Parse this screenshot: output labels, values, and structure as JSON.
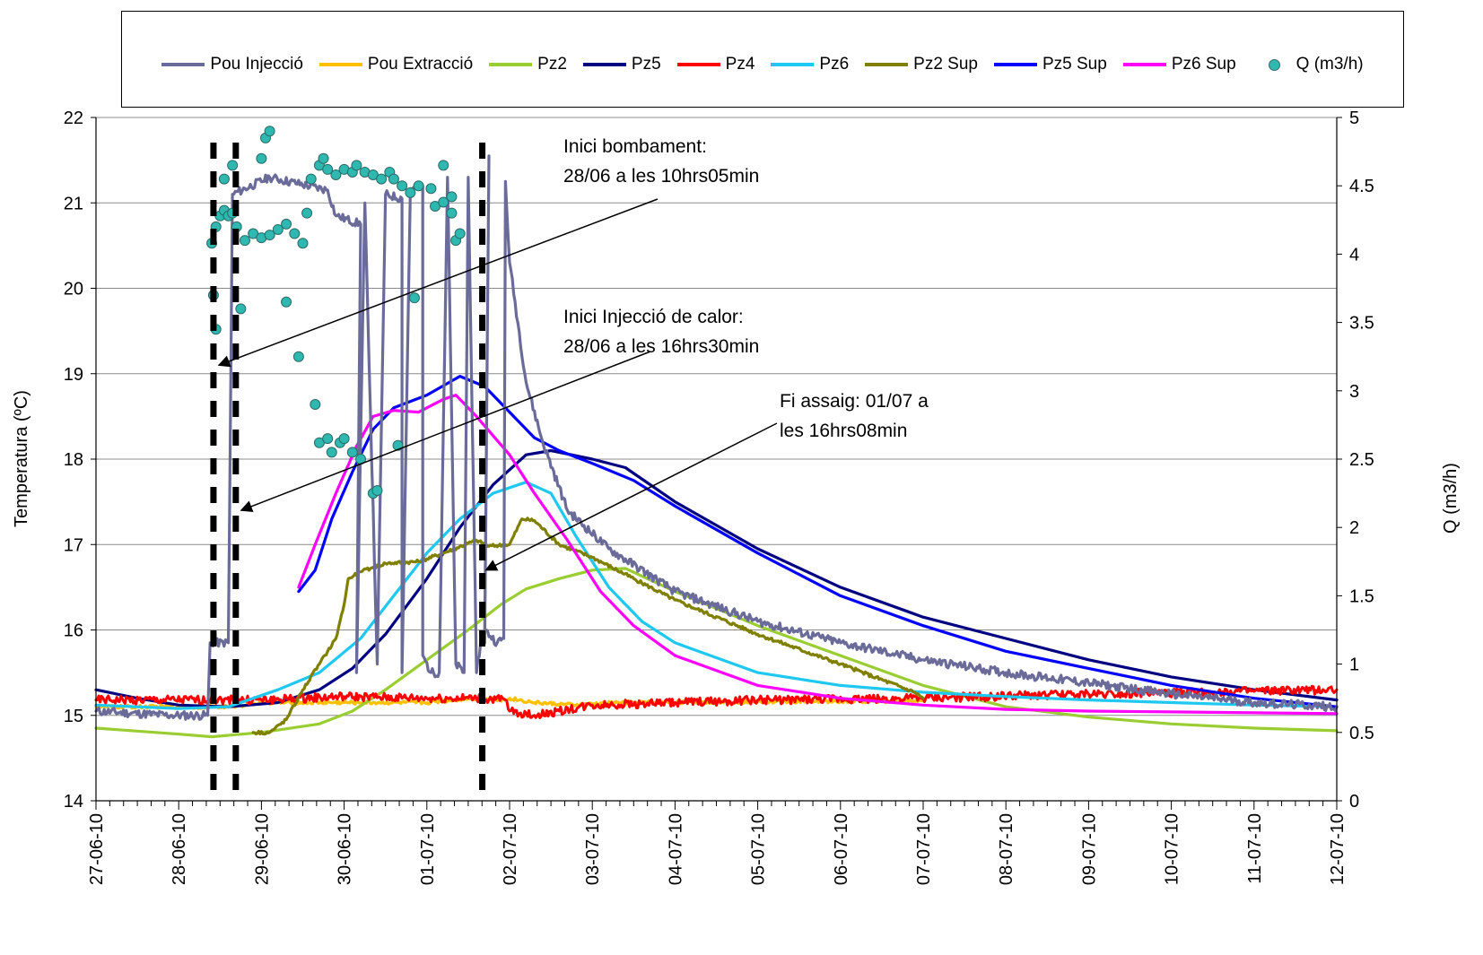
{
  "chart_data": {
    "type": "line",
    "xlabel": "",
    "ylabel": "Temperatura (ºC)",
    "y2label": "Q (m3/h)",
    "ylim": [
      14,
      22
    ],
    "y2lim": [
      0,
      5
    ],
    "yticks": [
      "14",
      "15",
      "16",
      "17",
      "18",
      "19",
      "20",
      "21",
      "22"
    ],
    "y2ticks": [
      "0",
      "0.5",
      "1",
      "1.5",
      "2",
      "2.5",
      "3",
      "3.5",
      "4",
      "4.5",
      "5"
    ],
    "x_range_days": [
      0,
      15
    ],
    "x_ticks": [
      "27-06-10",
      "28-06-10",
      "29-06-10",
      "30-06-10",
      "01-07-10",
      "02-07-10",
      "03-07-10",
      "04-07-10",
      "05-07-10",
      "06-07-10",
      "07-07-10",
      "08-07-10",
      "09-07-10",
      "10-07-10",
      "11-07-10",
      "12-07-10"
    ],
    "grid": "horizontal",
    "legend_position": "top",
    "series": [
      {
        "name": "Pou Injecció",
        "color": "#6b6b9a",
        "axis": "left",
        "noise": 0.05,
        "points": [
          [
            0,
            15.05
          ],
          [
            0.9,
            15.0
          ],
          [
            1.35,
            15.0
          ],
          [
            1.38,
            15.85
          ],
          [
            1.6,
            15.85
          ],
          [
            1.65,
            21.1
          ],
          [
            2.1,
            21.3
          ],
          [
            2.8,
            21.15
          ],
          [
            2.9,
            20.85
          ],
          [
            3.2,
            20.75
          ],
          [
            3.15,
            15.5
          ],
          [
            3.25,
            21.0
          ],
          [
            3.4,
            15.6
          ],
          [
            3.5,
            21.1
          ],
          [
            3.7,
            21.05
          ],
          [
            3.7,
            15.5
          ],
          [
            3.8,
            21.15
          ],
          [
            3.95,
            21.2
          ],
          [
            3.95,
            15.7
          ],
          [
            4.05,
            15.5
          ],
          [
            4.15,
            15.5
          ],
          [
            4.25,
            21.3
          ],
          [
            4.35,
            15.6
          ],
          [
            4.45,
            15.5
          ],
          [
            4.5,
            21.3
          ],
          [
            4.6,
            15.5
          ],
          [
            4.65,
            15.85
          ],
          [
            4.7,
            15.85
          ],
          [
            4.75,
            21.55
          ],
          [
            4.7,
            16.0
          ],
          [
            4.85,
            15.85
          ],
          [
            4.93,
            15.9
          ],
          [
            4.95,
            21.25
          ],
          [
            5.0,
            20.3
          ],
          [
            5.2,
            18.9
          ],
          [
            5.4,
            18.2
          ],
          [
            5.7,
            17.4
          ],
          [
            6.2,
            16.95
          ],
          [
            7.0,
            16.45
          ],
          [
            8.0,
            16.1
          ],
          [
            9.0,
            15.85
          ],
          [
            10.0,
            15.65
          ],
          [
            11.0,
            15.5
          ],
          [
            12.0,
            15.38
          ],
          [
            13.0,
            15.25
          ],
          [
            14.0,
            15.15
          ],
          [
            15.0,
            15.1
          ]
        ]
      },
      {
        "name": "Pou Extracció",
        "color": "#ffc000",
        "axis": "left",
        "noise": 0.02,
        "points": [
          [
            0,
            15.1
          ],
          [
            1.6,
            15.1
          ],
          [
            2.0,
            15.15
          ],
          [
            3.0,
            15.15
          ],
          [
            4.0,
            15.15
          ],
          [
            4.5,
            15.2
          ],
          [
            4.95,
            15.18
          ],
          [
            5.0,
            15.2
          ],
          [
            5.3,
            15.15
          ],
          [
            5.8,
            15.12
          ],
          [
            6.3,
            15.15
          ],
          [
            10.0,
            15.17
          ]
        ]
      },
      {
        "name": "Pz2",
        "color": "#9acd32",
        "axis": "left",
        "noise": 0,
        "points": [
          [
            0,
            14.85
          ],
          [
            1.0,
            14.78
          ],
          [
            1.4,
            14.75
          ],
          [
            2.0,
            14.8
          ],
          [
            2.7,
            14.9
          ],
          [
            3.1,
            15.05
          ],
          [
            3.5,
            15.3
          ],
          [
            4.0,
            15.65
          ],
          [
            4.5,
            16.0
          ],
          [
            4.9,
            16.3
          ],
          [
            5.2,
            16.48
          ],
          [
            5.6,
            16.6
          ],
          [
            6.0,
            16.7
          ],
          [
            6.4,
            16.72
          ],
          [
            7.0,
            16.45
          ],
          [
            8.0,
            16.05
          ],
          [
            9.0,
            15.7
          ],
          [
            10.0,
            15.35
          ],
          [
            11.0,
            15.1
          ],
          [
            12.0,
            14.98
          ],
          [
            13.0,
            14.9
          ],
          [
            14.0,
            14.85
          ],
          [
            15.0,
            14.82
          ]
        ]
      },
      {
        "name": "Pz5",
        "color": "#000080",
        "axis": "left",
        "noise": 0,
        "points": [
          [
            0,
            15.3
          ],
          [
            0.5,
            15.2
          ],
          [
            1.0,
            15.12
          ],
          [
            1.6,
            15.1
          ],
          [
            2.2,
            15.15
          ],
          [
            2.7,
            15.3
          ],
          [
            3.1,
            15.55
          ],
          [
            3.5,
            15.95
          ],
          [
            4.0,
            16.6
          ],
          [
            4.4,
            17.2
          ],
          [
            4.8,
            17.7
          ],
          [
            5.2,
            18.05
          ],
          [
            5.5,
            18.1
          ],
          [
            6.0,
            18.0
          ],
          [
            6.4,
            17.9
          ],
          [
            7.0,
            17.5
          ],
          [
            8.0,
            16.95
          ],
          [
            9.0,
            16.5
          ],
          [
            10.0,
            16.15
          ],
          [
            11.0,
            15.9
          ],
          [
            12.0,
            15.65
          ],
          [
            13.0,
            15.45
          ],
          [
            14.0,
            15.3
          ],
          [
            15.0,
            15.18
          ]
        ]
      },
      {
        "name": "Pz4",
        "color": "#ff0000",
        "axis": "left",
        "noise": 0.05,
        "points": [
          [
            0,
            15.18
          ],
          [
            2.0,
            15.18
          ],
          [
            3.0,
            15.22
          ],
          [
            4.0,
            15.2
          ],
          [
            4.6,
            15.2
          ],
          [
            4.95,
            15.18
          ],
          [
            5.0,
            15.05
          ],
          [
            5.3,
            15.0
          ],
          [
            5.6,
            15.05
          ],
          [
            6.0,
            15.12
          ],
          [
            7.0,
            15.15
          ],
          [
            8.0,
            15.18
          ],
          [
            10.0,
            15.2
          ],
          [
            12.0,
            15.25
          ],
          [
            14.0,
            15.28
          ],
          [
            15.0,
            15.3
          ]
        ]
      },
      {
        "name": "Pz6",
        "color": "#1ec8f0",
        "axis": "left",
        "noise": 0,
        "points": [
          [
            0,
            15.12
          ],
          [
            1.0,
            15.08
          ],
          [
            1.6,
            15.1
          ],
          [
            2.2,
            15.3
          ],
          [
            2.7,
            15.5
          ],
          [
            3.2,
            15.9
          ],
          [
            3.6,
            16.4
          ],
          [
            4.0,
            16.9
          ],
          [
            4.4,
            17.3
          ],
          [
            4.8,
            17.6
          ],
          [
            5.2,
            17.73
          ],
          [
            5.5,
            17.6
          ],
          [
            5.8,
            17.1
          ],
          [
            6.2,
            16.5
          ],
          [
            6.6,
            16.1
          ],
          [
            7.0,
            15.85
          ],
          [
            8.0,
            15.5
          ],
          [
            9.0,
            15.35
          ],
          [
            10.0,
            15.27
          ],
          [
            11.0,
            15.22
          ],
          [
            12.0,
            15.18
          ],
          [
            13.0,
            15.15
          ],
          [
            14.0,
            15.12
          ],
          [
            15.0,
            15.1
          ]
        ]
      },
      {
        "name": "Pz2 Sup",
        "color": "#808000",
        "axis": "left",
        "noise": 0.02,
        "points": [
          [
            1.9,
            14.8
          ],
          [
            2.1,
            14.8
          ],
          [
            2.3,
            14.95
          ],
          [
            2.5,
            15.3
          ],
          [
            2.7,
            15.6
          ],
          [
            2.8,
            15.75
          ],
          [
            2.9,
            15.9
          ],
          [
            3.0,
            16.3
          ],
          [
            3.05,
            16.6
          ],
          [
            3.2,
            16.68
          ],
          [
            3.5,
            16.78
          ],
          [
            3.9,
            16.8
          ],
          [
            4.2,
            16.9
          ],
          [
            4.6,
            17.05
          ],
          [
            4.75,
            16.98
          ],
          [
            5.0,
            17.0
          ],
          [
            5.15,
            17.3
          ],
          [
            5.3,
            17.28
          ],
          [
            5.6,
            17.0
          ],
          [
            6.0,
            16.85
          ],
          [
            6.5,
            16.6
          ],
          [
            7.0,
            16.35
          ],
          [
            8.0,
            15.95
          ],
          [
            9.0,
            15.6
          ],
          [
            9.9,
            15.27
          ],
          [
            10.0,
            15.2
          ]
        ]
      },
      {
        "name": "Pz5 Sup",
        "color": "#0000ff",
        "axis": "left",
        "noise": 0,
        "points": [
          [
            2.45,
            16.45
          ],
          [
            2.65,
            16.7
          ],
          [
            2.85,
            17.3
          ],
          [
            3.1,
            17.85
          ],
          [
            3.35,
            18.35
          ],
          [
            3.6,
            18.6
          ],
          [
            4.0,
            18.75
          ],
          [
            4.4,
            18.97
          ],
          [
            4.7,
            18.85
          ],
          [
            5.0,
            18.55
          ],
          [
            5.3,
            18.25
          ],
          [
            5.6,
            18.1
          ],
          [
            6.0,
            17.95
          ],
          [
            6.5,
            17.75
          ],
          [
            7.0,
            17.45
          ],
          [
            8.0,
            16.9
          ],
          [
            9.0,
            16.4
          ],
          [
            10.0,
            16.05
          ],
          [
            11.0,
            15.75
          ],
          [
            12.0,
            15.55
          ],
          [
            13.0,
            15.35
          ],
          [
            14.0,
            15.2
          ],
          [
            15.0,
            15.1
          ]
        ]
      },
      {
        "name": "Pz6 Sup",
        "color": "#ff00ff",
        "axis": "left",
        "noise": 0,
        "points": [
          [
            2.45,
            16.5
          ],
          [
            2.65,
            17.0
          ],
          [
            2.9,
            17.6
          ],
          [
            3.15,
            18.15
          ],
          [
            3.35,
            18.5
          ],
          [
            3.6,
            18.57
          ],
          [
            3.9,
            18.55
          ],
          [
            4.2,
            18.7
          ],
          [
            4.35,
            18.75
          ],
          [
            4.6,
            18.5
          ],
          [
            5.0,
            18.05
          ],
          [
            5.3,
            17.6
          ],
          [
            5.7,
            17.05
          ],
          [
            6.1,
            16.45
          ],
          [
            6.5,
            16.05
          ],
          [
            7.0,
            15.7
          ],
          [
            8.0,
            15.35
          ],
          [
            9.0,
            15.2
          ],
          [
            10.0,
            15.12
          ],
          [
            11.0,
            15.07
          ],
          [
            12.0,
            15.05
          ],
          [
            13.0,
            15.04
          ],
          [
            14.0,
            15.03
          ],
          [
            15.0,
            15.02
          ]
        ]
      }
    ],
    "scatter": {
      "name": "Q (m3/h)",
      "color": "#2eb8b0",
      "stroke": "#2a6b68",
      "axis": "right",
      "points": [
        [
          1.4,
          4.08
        ],
        [
          1.45,
          4.2
        ],
        [
          1.5,
          4.28
        ],
        [
          1.55,
          4.32
        ],
        [
          1.6,
          4.28
        ],
        [
          1.65,
          4.3
        ],
        [
          1.7,
          4.2
        ],
        [
          1.42,
          3.7
        ],
        [
          1.45,
          3.45
        ],
        [
          1.55,
          4.55
        ],
        [
          1.65,
          4.65
        ],
        [
          1.8,
          4.1
        ],
        [
          1.9,
          4.15
        ],
        [
          2.0,
          4.12
        ],
        [
          2.1,
          4.14
        ],
        [
          2.2,
          4.18
        ],
        [
          2.3,
          4.22
        ],
        [
          2.4,
          4.15
        ],
        [
          2.5,
          4.08
        ],
        [
          2.55,
          4.3
        ],
        [
          2.6,
          4.55
        ],
        [
          2.7,
          4.65
        ],
        [
          2.75,
          4.7
        ],
        [
          2.8,
          4.62
        ],
        [
          2.9,
          4.58
        ],
        [
          3.0,
          4.62
        ],
        [
          3.1,
          4.6
        ],
        [
          3.15,
          4.65
        ],
        [
          3.25,
          4.6
        ],
        [
          3.35,
          4.58
        ],
        [
          3.45,
          4.55
        ],
        [
          3.55,
          4.6
        ],
        [
          3.6,
          4.55
        ],
        [
          3.7,
          4.5
        ],
        [
          3.8,
          4.45
        ],
        [
          3.9,
          4.5
        ],
        [
          4.05,
          4.48
        ],
        [
          4.1,
          4.35
        ],
        [
          4.2,
          4.38
        ],
        [
          4.3,
          4.42
        ],
        [
          4.35,
          4.1
        ],
        [
          4.4,
          4.15
        ],
        [
          2.05,
          4.85
        ],
        [
          2.1,
          4.9
        ],
        [
          2.0,
          4.7
        ],
        [
          1.75,
          3.6
        ],
        [
          2.3,
          3.65
        ],
        [
          2.45,
          3.25
        ],
        [
          2.65,
          2.9
        ],
        [
          2.7,
          2.62
        ],
        [
          2.8,
          2.65
        ],
        [
          2.85,
          2.55
        ],
        [
          2.95,
          2.62
        ],
        [
          3.0,
          2.65
        ],
        [
          3.1,
          2.55
        ],
        [
          3.2,
          2.5
        ],
        [
          3.35,
          2.25
        ],
        [
          3.4,
          2.27
        ],
        [
          3.65,
          2.6
        ],
        [
          3.85,
          3.68
        ],
        [
          4.3,
          4.3
        ],
        [
          4.2,
          4.65
        ]
      ]
    },
    "markers": [
      {
        "x_day": 1.42,
        "label": "Inici bombament:",
        "label2": "28/06  a les 10hrs05min"
      },
      {
        "x_day": 1.69,
        "label": "Inici Injecció de calor:",
        "label2": "28/06  a les 16hrs30min"
      },
      {
        "x_day": 4.67,
        "label": "Fi assaig: 01/07  a",
        "label2": "les 16hrs08min"
      }
    ]
  }
}
